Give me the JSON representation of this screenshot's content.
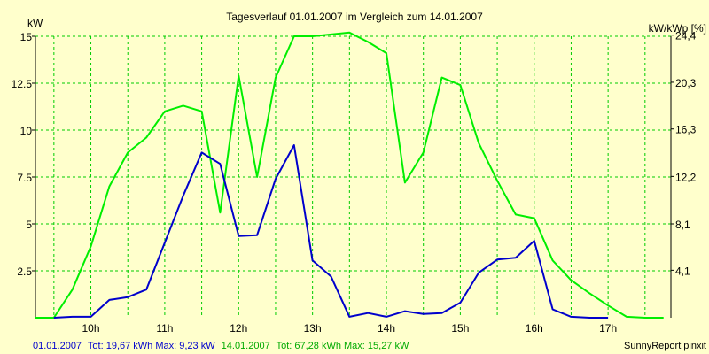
{
  "chart_data": {
    "type": "line",
    "title": "Tagesverlauf 01.01.2007 im Vergleich zum 14.01.2007",
    "ylabel_left": "kW",
    "ylabel_right": "kW/kWp [%]",
    "xlim": [
      9.25,
      17.85
    ],
    "ylim": [
      0,
      15
    ],
    "x_ticks": [
      {
        "value": 10,
        "label": "10h"
      },
      {
        "value": 11,
        "label": "11h"
      },
      {
        "value": 12,
        "label": "12h"
      },
      {
        "value": 13,
        "label": "13h"
      },
      {
        "value": 14,
        "label": "14h"
      },
      {
        "value": 15,
        "label": "15h"
      },
      {
        "value": 16,
        "label": "16h"
      },
      {
        "value": 17,
        "label": "17h"
      }
    ],
    "y_ticks_left": [
      {
        "value": 2.5,
        "label": "2.5"
      },
      {
        "value": 5,
        "label": "5"
      },
      {
        "value": 7.5,
        "label": "7.5"
      },
      {
        "value": 10,
        "label": "10"
      },
      {
        "value": 12.5,
        "label": "12.5"
      },
      {
        "value": 15,
        "label": "15"
      }
    ],
    "y_ticks_right": [
      {
        "value": 2.53,
        "label": "4,1"
      },
      {
        "value": 5.0,
        "label": "8,1"
      },
      {
        "value": 7.53,
        "label": "12,2"
      },
      {
        "value": 10.06,
        "label": "16,3"
      },
      {
        "value": 12.55,
        "label": "20,3"
      },
      {
        "value": 15.06,
        "label": "24,4"
      }
    ],
    "x_grid": [
      9.5,
      10.0,
      10.5,
      11.0,
      11.5,
      12.0,
      12.5,
      13.0,
      13.5,
      14.0,
      14.5,
      15.0,
      15.5,
      16.0,
      16.5,
      17.0,
      17.5
    ],
    "grid": true,
    "series": [
      {
        "name": "01.01.2007",
        "color": "#0000cc",
        "x": [
          9.5,
          9.75,
          10.0,
          10.25,
          10.5,
          10.75,
          11.0,
          11.25,
          11.5,
          11.75,
          12.0,
          12.25,
          12.5,
          12.75,
          13.0,
          13.25,
          13.5,
          13.75,
          14.0,
          14.25,
          14.5,
          14.75,
          15.0,
          15.25,
          15.5,
          15.75,
          16.0,
          16.25,
          16.5,
          16.75,
          17.0
        ],
        "y": [
          0,
          0.05,
          0.05,
          0.95,
          1.1,
          1.5,
          4.0,
          6.5,
          8.8,
          8.2,
          4.35,
          4.4,
          7.4,
          9.2,
          3.05,
          2.2,
          0.05,
          0.25,
          0.05,
          0.35,
          0.2,
          0.25,
          0.8,
          2.4,
          3.1,
          3.2,
          4.1,
          0.45,
          0.05,
          0.0,
          0.0
        ]
      },
      {
        "name": "14.01.2007",
        "color": "#00ee00",
        "x": [
          9.25,
          9.5,
          9.75,
          10.0,
          10.25,
          10.5,
          10.75,
          11.0,
          11.25,
          11.5,
          11.75,
          12.0,
          12.25,
          12.5,
          12.75,
          13.0,
          13.25,
          13.5,
          13.75,
          14.0,
          14.25,
          14.5,
          14.75,
          15.0,
          15.25,
          15.5,
          15.75,
          16.0,
          16.25,
          16.5,
          16.75,
          17.0,
          17.25,
          17.5,
          17.75
        ],
        "y": [
          0.0,
          0.0,
          1.5,
          3.8,
          7.0,
          8.8,
          9.6,
          11.0,
          11.3,
          11.0,
          5.6,
          12.9,
          7.5,
          12.8,
          15.0,
          15.0,
          15.1,
          15.2,
          14.7,
          14.1,
          7.2,
          8.8,
          12.8,
          12.4,
          9.3,
          7.3,
          5.5,
          5.3,
          3.05,
          2.0,
          1.3,
          0.65,
          0.05,
          0.0,
          0.0
        ]
      }
    ],
    "footer": {
      "s1_date": "01.01.2007",
      "s1_stats": "Tot: 19,67 kWh Max: 9,23 kW",
      "s2_date": "14.01.2007",
      "s2_stats": "Tot: 67,28 kWh Max: 15,27 kW",
      "credit": "SunnyReport pinxit"
    }
  }
}
